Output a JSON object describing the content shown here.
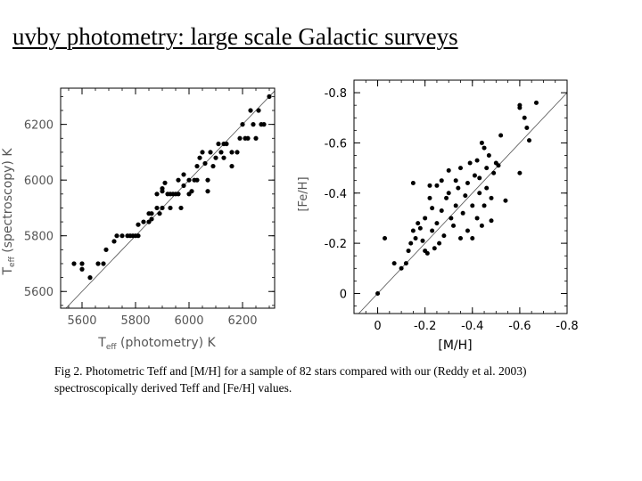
{
  "title": "uvby photometry: large scale Galactic surveys",
  "caption": "Fig 2. Photometric Teff and [M/H] for a sample of 82 stars compared with our (Reddy et al. 2003) spectroscopically derived Teff and [Fe/H] values.",
  "colors": {
    "points": "#000000",
    "axes": "#000000",
    "axis_text": "#555555",
    "fit_line": "#555555",
    "background": "#ffffff"
  },
  "chart_data": [
    {
      "type": "scatter",
      "title": "",
      "xlabel": "",
      "ylabel": "",
      "xlabel_parts": {
        "main": "T",
        "sub": "eff",
        "rest": "  (photometry)  K"
      },
      "ylabel_parts": {
        "main": "T",
        "sub": "eff",
        "rest": "  (spectroscopy)  K"
      },
      "xlim": [
        5520,
        6320
      ],
      "ylim": [
        5540,
        6330
      ],
      "x_ticks": [
        5600,
        5800,
        6000,
        6200
      ],
      "y_ticks": [
        5600,
        5800,
        6000,
        6200
      ],
      "x_minor_step": 50,
      "y_minor_step": 50,
      "reference_line": "one-to-one",
      "grid": false,
      "points": [
        [
          5570,
          5700
        ],
        [
          5600,
          5700
        ],
        [
          5600,
          5680
        ],
        [
          5630,
          5650
        ],
        [
          5660,
          5700
        ],
        [
          5680,
          5700
        ],
        [
          5690,
          5750
        ],
        [
          5720,
          5780
        ],
        [
          5730,
          5800
        ],
        [
          5750,
          5800
        ],
        [
          5770,
          5800
        ],
        [
          5780,
          5800
        ],
        [
          5790,
          5800
        ],
        [
          5800,
          5800
        ],
        [
          5810,
          5800
        ],
        [
          5810,
          5840
        ],
        [
          5830,
          5850
        ],
        [
          5850,
          5850
        ],
        [
          5850,
          5880
        ],
        [
          5860,
          5860
        ],
        [
          5860,
          5880
        ],
        [
          5880,
          5900
        ],
        [
          5880,
          5950
        ],
        [
          5890,
          5880
        ],
        [
          5900,
          5900
        ],
        [
          5900,
          5960
        ],
        [
          5900,
          5970
        ],
        [
          5910,
          5990
        ],
        [
          5920,
          5950
        ],
        [
          5930,
          5950
        ],
        [
          5930,
          5900
        ],
        [
          5940,
          5950
        ],
        [
          5950,
          5950
        ],
        [
          5960,
          5950
        ],
        [
          5960,
          6000
        ],
        [
          5970,
          5900
        ],
        [
          5980,
          5980
        ],
        [
          5980,
          6020
        ],
        [
          6000,
          6000
        ],
        [
          6000,
          5950
        ],
        [
          6010,
          5960
        ],
        [
          6020,
          6000
        ],
        [
          6030,
          6000
        ],
        [
          6030,
          6050
        ],
        [
          6040,
          6080
        ],
        [
          6050,
          6100
        ],
        [
          6060,
          6060
        ],
        [
          6070,
          6000
        ],
        [
          6070,
          5960
        ],
        [
          6080,
          6100
        ],
        [
          6090,
          6050
        ],
        [
          6100,
          6080
        ],
        [
          6110,
          6130
        ],
        [
          6120,
          6100
        ],
        [
          6130,
          6080
        ],
        [
          6130,
          6130
        ],
        [
          6140,
          6130
        ],
        [
          6160,
          6050
        ],
        [
          6160,
          6100
        ],
        [
          6180,
          6100
        ],
        [
          6190,
          6150
        ],
        [
          6200,
          6200
        ],
        [
          6210,
          6150
        ],
        [
          6220,
          6150
        ],
        [
          6230,
          6250
        ],
        [
          6240,
          6200
        ],
        [
          6250,
          6150
        ],
        [
          6260,
          6250
        ],
        [
          6270,
          6200
        ],
        [
          6280,
          6200
        ],
        [
          6300,
          6300
        ]
      ]
    },
    {
      "type": "scatter",
      "title": "",
      "xlabel": "[M/H]",
      "ylabel": "[Fe/H]",
      "xlim": [
        0.1,
        -0.8
      ],
      "ylim": [
        0.08,
        -0.85
      ],
      "x_ticks": [
        0,
        -0.2,
        -0.4,
        -0.6,
        -0.8
      ],
      "x_tick_labels": [
        "0",
        "-0.2",
        "-0.4",
        "-0.6",
        "-0.8"
      ],
      "y_ticks": [
        0,
        -0.2,
        -0.4,
        -0.6,
        -0.8
      ],
      "y_tick_labels": [
        "0",
        "-0.2",
        "-0.4",
        "-0.6",
        "-0.8"
      ],
      "x_minor_step": 0.05,
      "y_minor_step": 0.05,
      "reference_line": "one-to-one",
      "grid": false,
      "points": [
        [
          0.0,
          0.0
        ],
        [
          -0.03,
          -0.22
        ],
        [
          -0.07,
          -0.12
        ],
        [
          -0.1,
          -0.1
        ],
        [
          -0.12,
          -0.12
        ],
        [
          -0.13,
          -0.17
        ],
        [
          -0.14,
          -0.2
        ],
        [
          -0.15,
          -0.25
        ],
        [
          -0.15,
          -0.44
        ],
        [
          -0.16,
          -0.22
        ],
        [
          -0.17,
          -0.28
        ],
        [
          -0.18,
          -0.26
        ],
        [
          -0.19,
          -0.21
        ],
        [
          -0.2,
          -0.17
        ],
        [
          -0.2,
          -0.3
        ],
        [
          -0.21,
          -0.16
        ],
        [
          -0.22,
          -0.38
        ],
        [
          -0.22,
          -0.43
        ],
        [
          -0.23,
          -0.25
        ],
        [
          -0.23,
          -0.34
        ],
        [
          -0.24,
          -0.18
        ],
        [
          -0.25,
          -0.28
        ],
        [
          -0.25,
          -0.43
        ],
        [
          -0.26,
          -0.2
        ],
        [
          -0.27,
          -0.33
        ],
        [
          -0.27,
          -0.45
        ],
        [
          -0.28,
          -0.23
        ],
        [
          -0.29,
          -0.38
        ],
        [
          -0.3,
          -0.4
        ],
        [
          -0.3,
          -0.49
        ],
        [
          -0.31,
          -0.3
        ],
        [
          -0.32,
          -0.27
        ],
        [
          -0.33,
          -0.35
        ],
        [
          -0.33,
          -0.45
        ],
        [
          -0.34,
          -0.42
        ],
        [
          -0.35,
          -0.22
        ],
        [
          -0.35,
          -0.5
        ],
        [
          -0.36,
          -0.32
        ],
        [
          -0.37,
          -0.39
        ],
        [
          -0.38,
          -0.25
        ],
        [
          -0.38,
          -0.44
        ],
        [
          -0.39,
          -0.52
        ],
        [
          -0.4,
          -0.22
        ],
        [
          -0.4,
          -0.35
        ],
        [
          -0.41,
          -0.47
        ],
        [
          -0.42,
          -0.3
        ],
        [
          -0.42,
          -0.53
        ],
        [
          -0.43,
          -0.4
        ],
        [
          -0.43,
          -0.46
        ],
        [
          -0.44,
          -0.27
        ],
        [
          -0.44,
          -0.6
        ],
        [
          -0.45,
          -0.35
        ],
        [
          -0.45,
          -0.58
        ],
        [
          -0.46,
          -0.42
        ],
        [
          -0.46,
          -0.5
        ],
        [
          -0.47,
          -0.55
        ],
        [
          -0.48,
          -0.29
        ],
        [
          -0.48,
          -0.38
        ],
        [
          -0.49,
          -0.48
        ],
        [
          -0.5,
          -0.52
        ],
        [
          -0.51,
          -0.51
        ],
        [
          -0.52,
          -0.63
        ],
        [
          -0.54,
          -0.37
        ],
        [
          -0.6,
          -0.48
        ],
        [
          -0.6,
          -0.75
        ],
        [
          -0.6,
          -0.74
        ],
        [
          -0.62,
          -0.7
        ],
        [
          -0.63,
          -0.66
        ],
        [
          -0.64,
          -0.61
        ],
        [
          -0.67,
          -0.76
        ]
      ]
    }
  ]
}
